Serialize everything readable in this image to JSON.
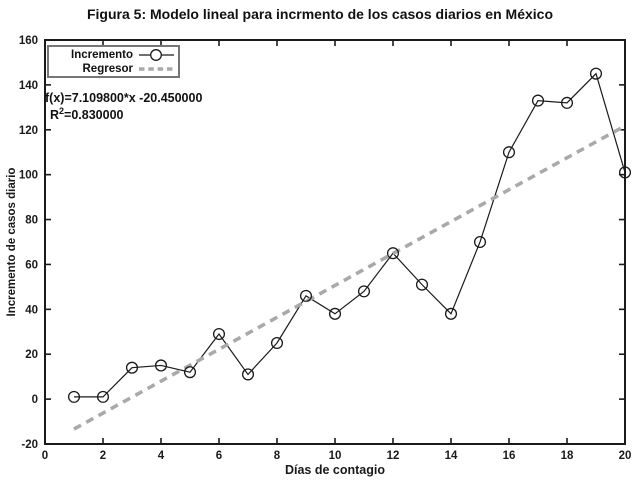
{
  "chart_data": {
    "type": "line",
    "title": "Figura 5: Modelo lineal para incrmento de los casos diarios en México",
    "xlabel": "Días de contagio",
    "ylabel": "Incremento de casos diario",
    "xlim": [
      0,
      20
    ],
    "ylim": [
      -20,
      160
    ],
    "xticks": [
      0,
      2,
      4,
      6,
      8,
      10,
      12,
      14,
      16,
      18,
      20
    ],
    "yticks": [
      -20,
      0,
      20,
      40,
      60,
      80,
      100,
      120,
      140,
      160
    ],
    "grid": false,
    "legend_position": "top-left",
    "series": [
      {
        "name": "Incremento",
        "type": "line",
        "marker": "open-circle",
        "color": "#1a1a1a",
        "x": [
          1,
          2,
          3,
          4,
          5,
          6,
          7,
          8,
          9,
          10,
          11,
          12,
          13,
          14,
          15,
          16,
          17,
          18,
          19,
          20
        ],
        "y": [
          1,
          1,
          14,
          15,
          12,
          29,
          11,
          25,
          46,
          38,
          48,
          65,
          51,
          38,
          70,
          110,
          133,
          132,
          145,
          101
        ]
      },
      {
        "name": "Regresor",
        "type": "regression-line",
        "style": "dashed",
        "color": "#a9a9a9",
        "slope": 7.1098,
        "intercept": -20.45,
        "x_range": [
          1,
          20
        ]
      }
    ],
    "annotation": {
      "equation": "f(x)=7.109800*x -20.450000",
      "r2_base": "R",
      "r2_sup": "2",
      "r2_value": "=0.830000"
    },
    "colors": {
      "axis": "#1a1a1a",
      "background": "#ffffff",
      "legend_border": "#767676"
    }
  }
}
